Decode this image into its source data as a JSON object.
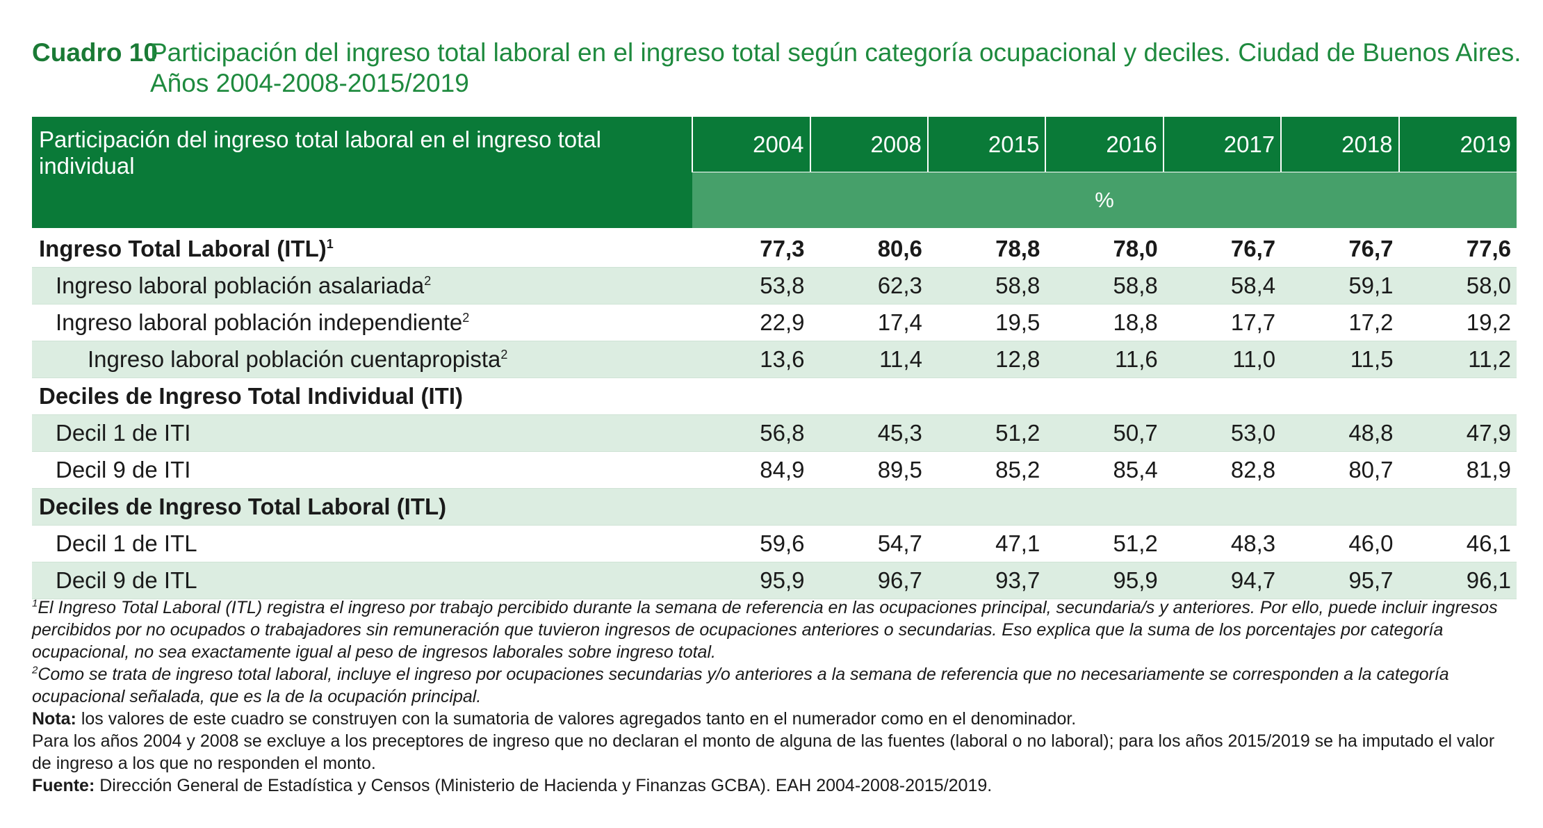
{
  "title": {
    "label": "Cuadro 10",
    "line1": "Participación del ingreso total laboral en el ingreso total según categoría ocupacional y deciles. Ciudad de Buenos Aires.",
    "line2": "Años 2004-2008-2015/2019"
  },
  "table": {
    "header_label": "Participación del ingreso total laboral en el ingreso total individual",
    "years": [
      "2004",
      "2008",
      "2015",
      "2016",
      "2017",
      "2018",
      "2019"
    ],
    "unit": "%",
    "rows": [
      {
        "label": "Ingreso Total Laboral (ITL)",
        "sup": "1",
        "values": [
          "77,3",
          "80,6",
          "78,8",
          "78,0",
          "76,7",
          "76,7",
          "77,6"
        ]
      },
      {
        "label": "Ingreso laboral población asalariada",
        "sup": "2",
        "values": [
          "53,8",
          "62,3",
          "58,8",
          "58,8",
          "58,4",
          "59,1",
          "58,0"
        ]
      },
      {
        "label": "Ingreso laboral población independiente",
        "sup": "2",
        "values": [
          "22,9",
          "17,4",
          "19,5",
          "18,8",
          "17,7",
          "17,2",
          "19,2"
        ]
      },
      {
        "label": "Ingreso laboral población cuentapropista",
        "sup": "2",
        "values": [
          "13,6",
          "11,4",
          "12,8",
          "11,6",
          "11,0",
          "11,5",
          "11,2"
        ]
      },
      {
        "label": "Deciles de Ingreso Total Individual (ITI)",
        "sup": "",
        "values": [
          "",
          "",
          "",
          "",
          "",
          "",
          ""
        ]
      },
      {
        "label": "Decil 1 de ITI",
        "sup": "",
        "values": [
          "56,8",
          "45,3",
          "51,2",
          "50,7",
          "53,0",
          "48,8",
          "47,9"
        ]
      },
      {
        "label": "Decil 9 de ITI",
        "sup": "",
        "values": [
          "84,9",
          "89,5",
          "85,2",
          "85,4",
          "82,8",
          "80,7",
          "81,9"
        ]
      },
      {
        "label": "Deciles de Ingreso Total Laboral (ITL)",
        "sup": "",
        "values": [
          "",
          "",
          "",
          "",
          "",
          "",
          ""
        ]
      },
      {
        "label": "Decil 1 de ITL",
        "sup": "",
        "values": [
          "59,6",
          "54,7",
          "47,1",
          "51,2",
          "48,3",
          "46,0",
          "46,1"
        ]
      },
      {
        "label": "Decil 9 de ITL",
        "sup": "",
        "values": [
          "95,9",
          "96,7",
          "93,7",
          "95,9",
          "94,7",
          "95,7",
          "96,1"
        ]
      }
    ]
  },
  "notes": {
    "fn1_mark": "1",
    "fn1": "El Ingreso Total Laboral (ITL) registra el ingreso por trabajo percibido durante la semana de referencia en las ocupaciones principal, secundaria/s y anteriores. Por ello, puede incluir ingresos percibidos por no ocupados o trabajadores sin remuneración que tuvieron ingresos de ocupaciones anteriores o secundarias. Eso explica que la suma de los porcentajes por categoría ocupacional, no sea exactamente igual al peso de ingresos laborales sobre ingreso total.",
    "fn2_mark": "2",
    "fn2": "Como se trata de ingreso total laboral, incluye el ingreso por ocupaciones secundarias y/o anteriores a la semana de referencia que no necesariamente se corresponden a la categoría ocupacional señalada, que es la de la ocupación principal.",
    "nota_label": "Nota:",
    "nota": " los valores de este cuadro se construyen con la sumatoria de valores agregados tanto en el numerador como en el denominador.",
    "nota2": "Para los años 2004 y 2008 se excluye a los preceptores de ingreso que no declaran el monto de alguna de las fuentes (laboral o no laboral); para los años 2015/2019 se ha imputado el valor de ingreso a los que no responden el monto.",
    "fuente_label": "Fuente:",
    "fuente": " Dirección General de Estadística y Censos (Ministerio de Hacienda y Finanzas GCBA). EAH 2004-2008-2015/2019."
  }
}
